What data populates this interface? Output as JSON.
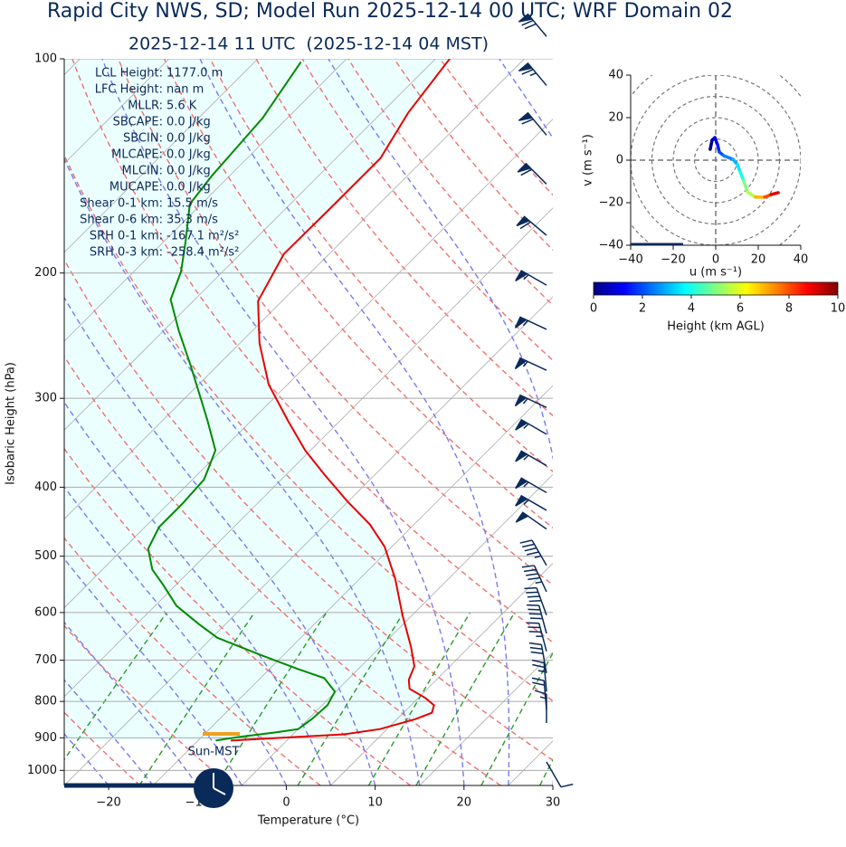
{
  "chart_data": [
    {
      "type": "skewt",
      "title": "Rapid City NWS, SD; Model Run 2025-12-14 00 UTC; WRF Domain 02",
      "subtitle": "2025-12-14 11 UTC  (2025-12-14 04 MST)",
      "xlabel": "Temperature (°C)",
      "ylabel": "Isobaric Height (hPa)",
      "xlim": [
        -25,
        30
      ],
      "ylim": [
        1050,
        100
      ],
      "log_y": true,
      "grid": true,
      "xticks": [
        {
          "value": -20,
          "label": "−20"
        },
        {
          "value": -10,
          "label": "−10"
        },
        0,
        10,
        20,
        30
      ],
      "yticks": [
        100,
        200,
        300,
        400,
        500,
        600,
        700,
        800,
        900,
        1000
      ],
      "series": [
        {
          "color": "#e60000",
          "pressure": [
            908,
            890,
            875,
            847,
            830,
            810,
            791,
            768,
            746,
            714,
            670,
            605,
            538,
            485,
            451,
            420,
            384,
            355,
            323,
            287,
            251,
            219,
            188,
            161,
            138,
            119,
            100
          ],
          "values": [
            -11.3,
            0.7,
            4.2,
            7.1,
            8.2,
            7.6,
            5.8,
            3.0,
            1.9,
            1.0,
            -1.6,
            -6.1,
            -11.0,
            -15.8,
            -20.0,
            -24.9,
            -30.7,
            -35.6,
            -40.8,
            -47.1,
            -52.8,
            -57.7,
            -60.1,
            -60.0,
            -60.0,
            -62.0,
            -63.4
          ]
        },
        {
          "color": "#008a00",
          "pressure": [
            908,
            897,
            884,
            875,
            847,
            810,
            775,
            742,
            721,
            690,
            651,
            623,
            587,
            549,
            522,
            488,
            455,
            423,
            390,
            355,
            322,
            270,
            241,
            218,
            199,
            181,
            160,
            146,
            136,
            121,
            101
          ],
          "values": [
            -13.0,
            -10.7,
            -7.1,
            -5.0,
            -4.6,
            -4.4,
            -5.1,
            -7.8,
            -11.7,
            -17.3,
            -24.4,
            -28.0,
            -32.6,
            -36.4,
            -39.4,
            -42.2,
            -43.4,
            -43.4,
            -43.7,
            -45.7,
            -50.0,
            -58.0,
            -63.3,
            -67.7,
            -69.7,
            -72.5,
            -76.3,
            -77.0,
            -77.3,
            -77.8,
            -79.8
          ]
        }
      ],
      "stats": [
        {
          "label": "LCL Height:",
          "value": "1177.0 m"
        },
        {
          "label": "LFC Height:",
          "value": "nan m"
        },
        {
          "label": "MLLR:",
          "value": "5.6 K"
        },
        {
          "label": "SBCAPE:",
          "value": "0.0 J/kg"
        },
        {
          "label": "SBCIN:",
          "value": "0.0 J/kg"
        },
        {
          "label": "MLCAPE:",
          "value": "0.0 J/kg"
        },
        {
          "label": "MLCIN:",
          "value": "0.0 J/kg"
        },
        {
          "label": "MUCAPE:",
          "value": "0.0 J/kg"
        },
        {
          "label": "Shear 0-1 km:",
          "value": "15.5 m/s"
        },
        {
          "label": "Shear 0-6 km:",
          "value": "35.3 m/s"
        },
        {
          "label": "SRH 0-1 km:",
          "value": "-167.1 m²/s²"
        },
        {
          "label": "SRH 0-3 km:",
          "value": "-258.4 m²/s²"
        }
      ],
      "wind_barbs": {
        "color": "#0a2a5a",
        "pressure": [
          93,
          109,
          128,
          150,
          177,
          208,
          240,
          274,
          309,
          337,
          373,
          407,
          431,
          458,
          515,
          561,
          605,
          642,
          680,
          730,
          775,
          821,
          858,
          973
        ],
        "speed": [
          70,
          65,
          60,
          60,
          60,
          55,
          55,
          55,
          55,
          55,
          55,
          55,
          55,
          50,
          45,
          45,
          40,
          40,
          35,
          30,
          25,
          20,
          15,
          10
        ],
        "direction": [
          320,
          320,
          320,
          315,
          310,
          300,
          295,
          295,
          295,
          300,
          300,
          300,
          300,
          305,
          330,
          335,
          340,
          345,
          345,
          350,
          355,
          355,
          360,
          150
        ]
      },
      "annotation": "Sun-MST"
    },
    {
      "type": "hodograph",
      "xlabel": "u (m s⁻¹)",
      "ylabel": "v (m s⁻¹)",
      "xlim": [
        -40,
        40
      ],
      "ylim": [
        -40,
        40
      ],
      "xticks": [
        {
          "value": -40,
          "label": "−40"
        },
        {
          "value": -20,
          "label": "−20"
        },
        0,
        20,
        40
      ],
      "yticks": [
        {
          "value": -40,
          "label": "−40"
        },
        {
          "value": -20,
          "label": "−20"
        },
        0,
        20,
        40
      ],
      "u": [
        -2.6,
        -1.7,
        -0.4,
        0.9,
        1.7,
        3.8,
        8.1,
        10.2,
        11.5,
        13.2,
        14.9,
        18.7,
        23.0,
        26.0,
        29.4
      ],
      "v": [
        5.1,
        9.4,
        10.6,
        7.2,
        3.8,
        2.1,
        0.4,
        -2.1,
        -5.5,
        -9.8,
        -14.9,
        -17.4,
        -17.4,
        -16.2,
        -15.3
      ],
      "heights": [
        0,
        0.5,
        1,
        1.5,
        2,
        2.5,
        3,
        3.5,
        4,
        5,
        5.5,
        7,
        8,
        9,
        10
      ],
      "colorbar": {
        "label": "Height (km AGL)",
        "lim": [
          0,
          10
        ],
        "ticks": [
          0,
          2,
          4,
          6,
          8,
          10
        ],
        "colormap": "jet"
      }
    }
  ]
}
